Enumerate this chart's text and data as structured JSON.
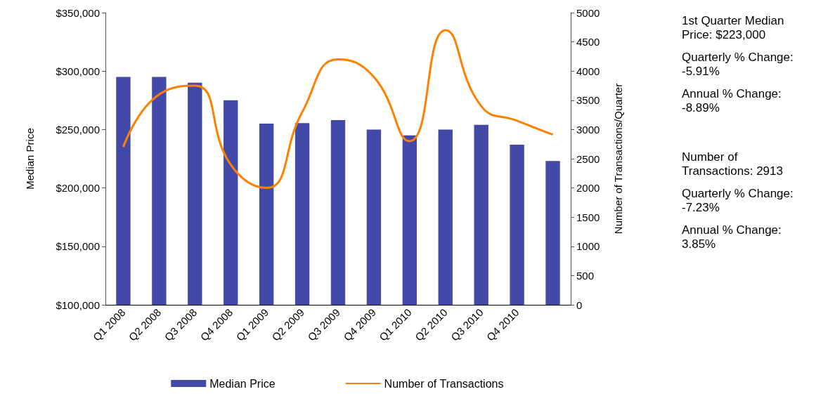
{
  "chart_data": {
    "type": "bar",
    "categories": [
      "Q1 2008",
      "Q2 2008",
      "Q3 2008",
      "Q4 2008",
      "Q1 2009",
      "Q2 2009",
      "Q3 2009",
      "Q4 2009",
      "Q1 2010",
      "Q2 2010",
      "Q3 2010",
      "Q4 2010",
      null
    ],
    "series": [
      {
        "name": "Median Price",
        "color": "#4349a8",
        "values": [
          295000,
          295000,
          290000,
          275000,
          255000,
          255500,
          258000,
          250000,
          245000,
          250000,
          254000,
          237000,
          223000
        ]
      },
      {
        "name": "Number of Transactions",
        "type": "line",
        "axis": "y2",
        "color": "#ff8000",
        "values": [
          2700,
          3600,
          3750,
          2400,
          2000,
          3300,
          4200,
          3900,
          2800,
          4700,
          3400,
          3150,
          2913
        ]
      }
    ],
    "ylabel": "Median Price",
    "y2label": "Number of Transactions/Quarter",
    "ylim": [
      100000,
      350000
    ],
    "yticks": [
      {
        "value": 100000,
        "label": "$100,000"
      },
      {
        "value": 150000,
        "label": "$150,000"
      },
      {
        "value": 200000,
        "label": "$200,000"
      },
      {
        "value": 250000,
        "label": "$250,000"
      },
      {
        "value": 300000,
        "label": "$300,000"
      },
      {
        "value": 350000,
        "label": "$350,000"
      }
    ],
    "y2lim": [
      0,
      5000
    ],
    "y2ticks": [
      0,
      500,
      1000,
      1500,
      2000,
      2500,
      3000,
      3500,
      4000,
      4500,
      5000
    ],
    "grid": false,
    "legend": "bottom",
    "marker": "none",
    "line_style": "solid",
    "annotations": [
      "1st Quarter Median Price: $223,000",
      "Quarterly % Change: -5.91%",
      "Annual % Change: -8.89%",
      "Number of Transactions: 2913",
      "Quarterly % Change: -7.23%",
      "Annual % Change: 3.85%"
    ]
  }
}
